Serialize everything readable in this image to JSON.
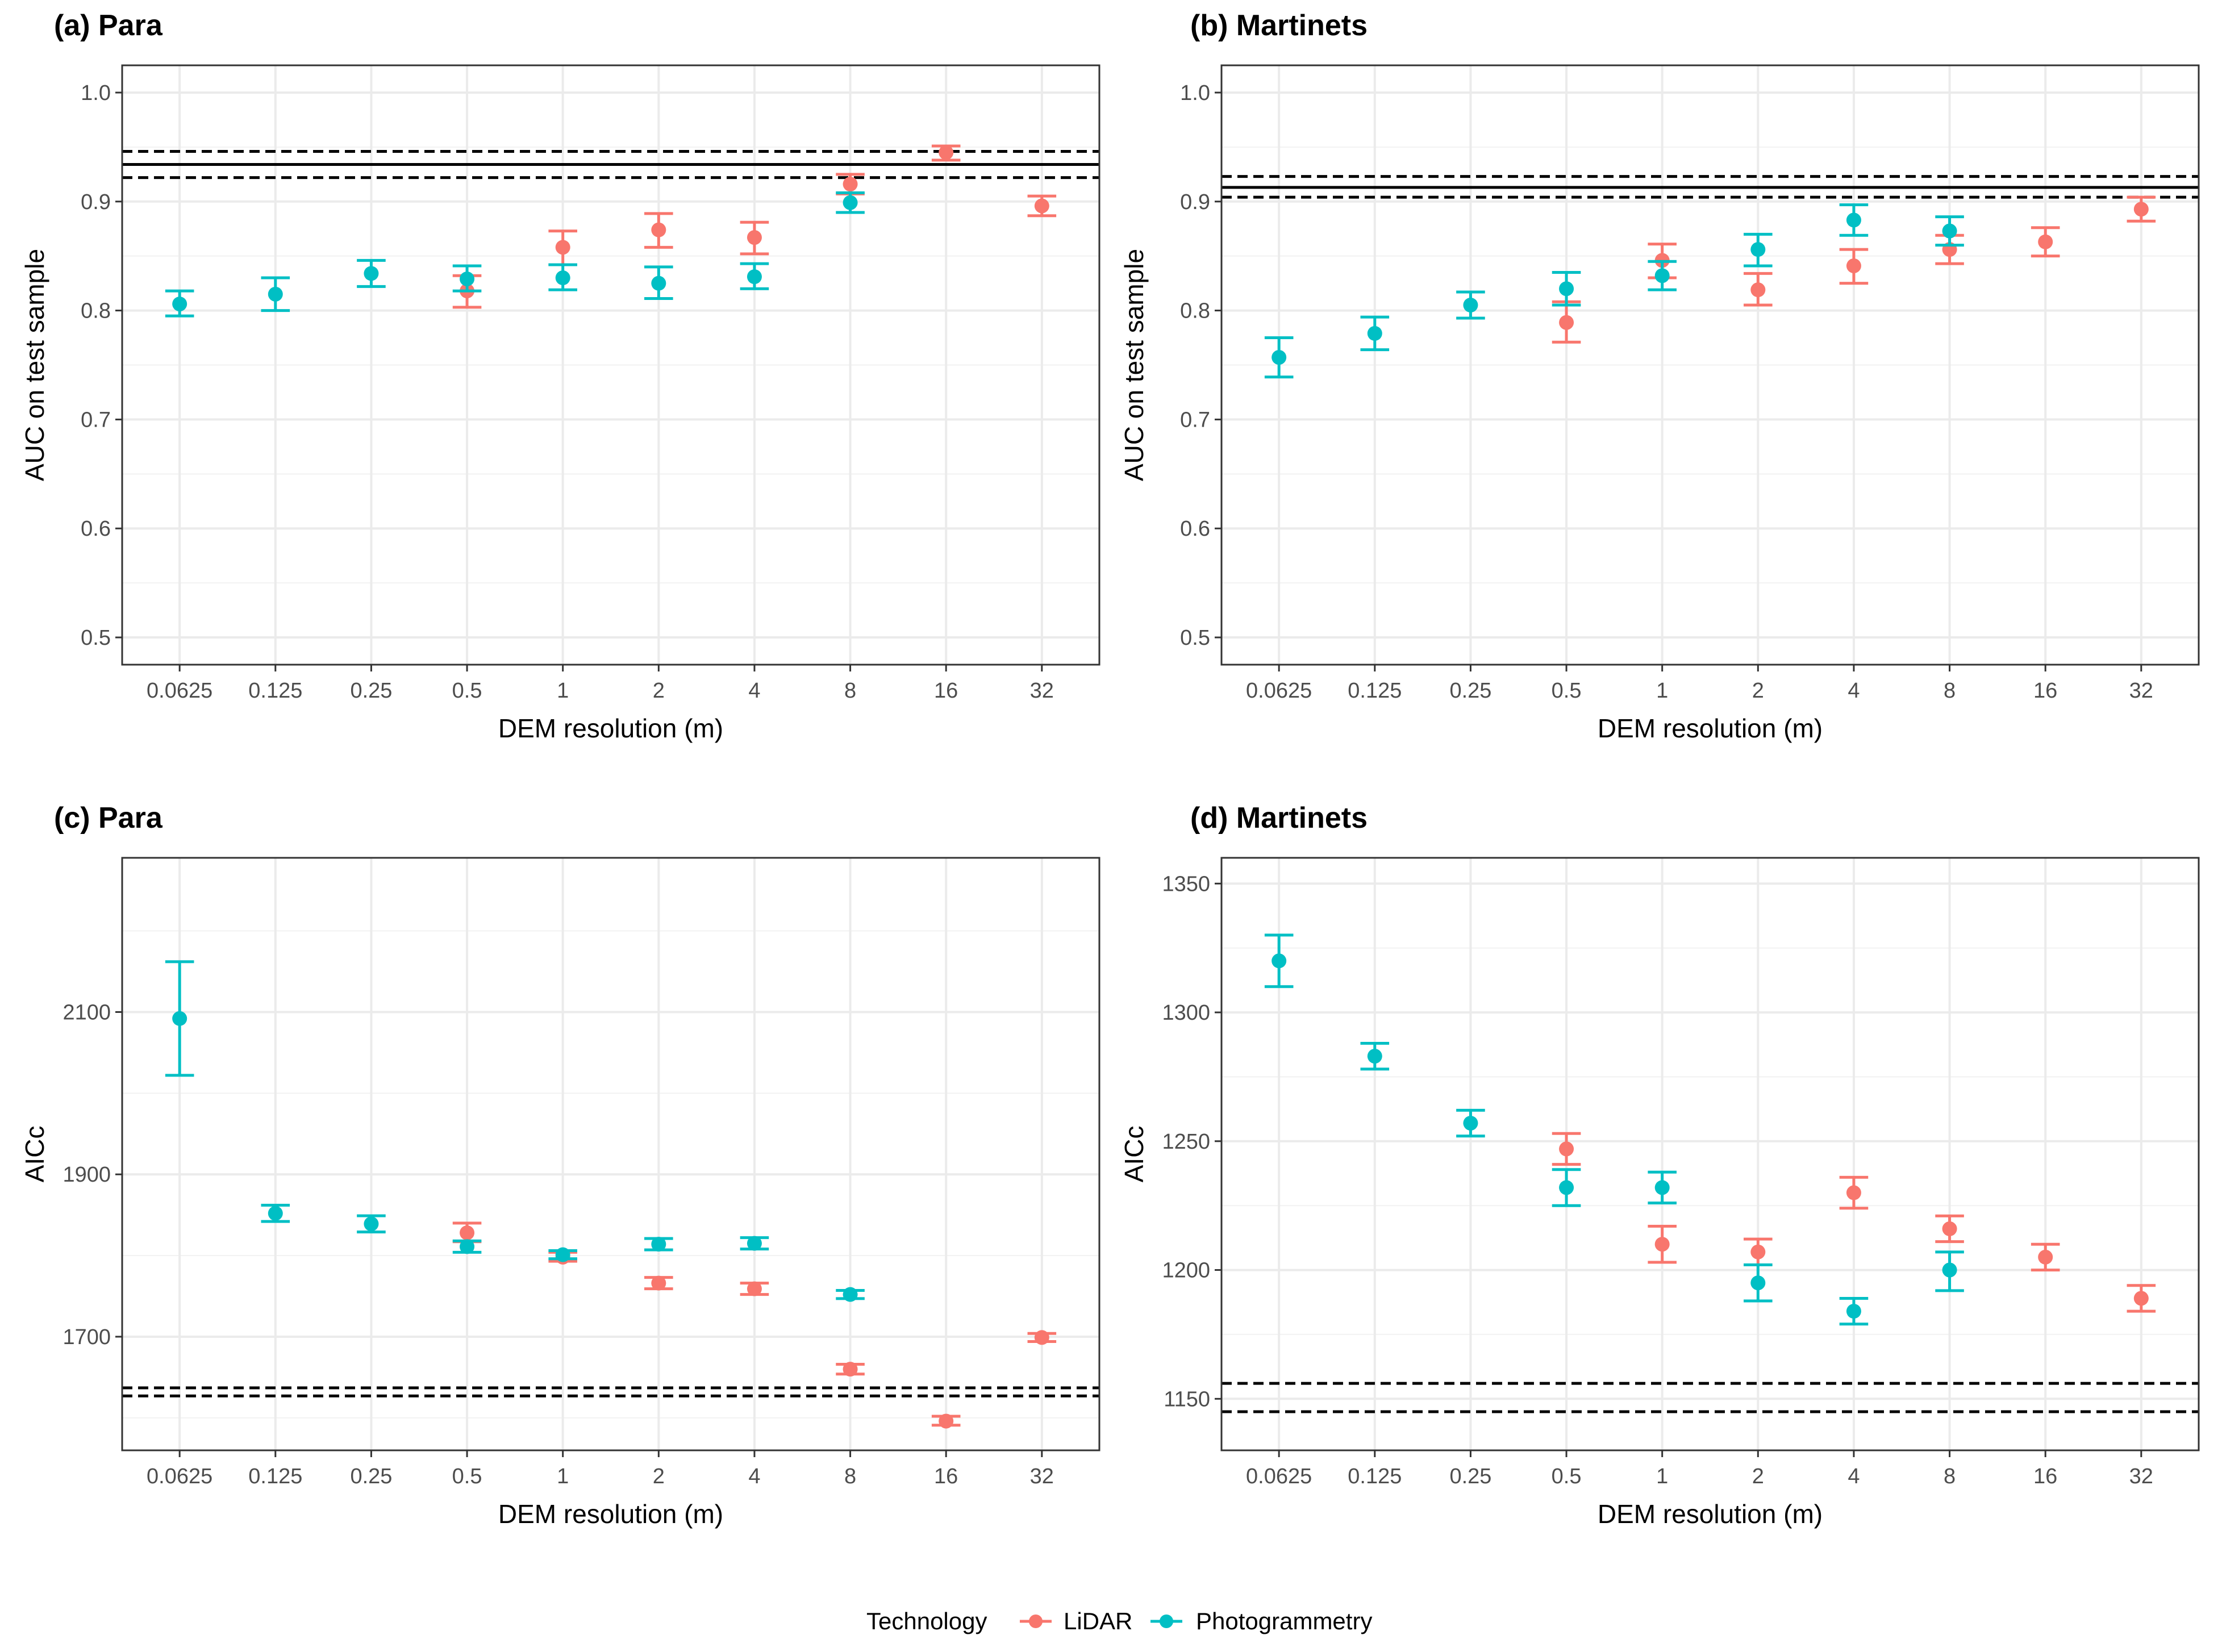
{
  "figure": {
    "legend": {
      "title": "Technology",
      "items": [
        {
          "label": "LiDAR",
          "color": "#F8766D"
        },
        {
          "label": "Photogrammetry",
          "color": "#00BFC4"
        }
      ]
    }
  },
  "chart_data": [
    {
      "id": "a",
      "type": "scatter",
      "title": "(a) Para",
      "xlabel": "DEM resolution (m)",
      "ylabel": "AUC on test sample",
      "categories": [
        "0.0625",
        "0.125",
        "0.25",
        "0.5",
        "1",
        "2",
        "4",
        "8",
        "16",
        "32"
      ],
      "ylim": [
        0.475,
        1.025
      ],
      "yticks": [
        0.5,
        0.6,
        0.7,
        0.8,
        0.9,
        1.0
      ],
      "ytick_labels": [
        "0.5",
        "0.6",
        "0.7",
        "0.8",
        "0.9",
        "1.0"
      ],
      "hlines": [
        {
          "y": 0.934,
          "style": "solid"
        },
        {
          "y": 0.946,
          "style": "dashed"
        },
        {
          "y": 0.922,
          "style": "dashed"
        }
      ],
      "series": [
        {
          "name": "LiDAR",
          "color": "#F8766D",
          "points": [
            {
              "x": "0.5",
              "y": 0.818,
              "lo": 0.803,
              "hi": 0.832
            },
            {
              "x": "1",
              "y": 0.858,
              "lo": 0.842,
              "hi": 0.873
            },
            {
              "x": "2",
              "y": 0.874,
              "lo": 0.858,
              "hi": 0.889
            },
            {
              "x": "4",
              "y": 0.867,
              "lo": 0.852,
              "hi": 0.881
            },
            {
              "x": "8",
              "y": 0.916,
              "lo": 0.907,
              "hi": 0.925
            },
            {
              "x": "16",
              "y": 0.945,
              "lo": 0.938,
              "hi": 0.951
            },
            {
              "x": "32",
              "y": 0.896,
              "lo": 0.887,
              "hi": 0.905
            }
          ]
        },
        {
          "name": "Photogrammetry",
          "color": "#00BFC4",
          "points": [
            {
              "x": "0.0625",
              "y": 0.806,
              "lo": 0.795,
              "hi": 0.818
            },
            {
              "x": "0.125",
              "y": 0.815,
              "lo": 0.8,
              "hi": 0.83
            },
            {
              "x": "0.25",
              "y": 0.834,
              "lo": 0.822,
              "hi": 0.846
            },
            {
              "x": "0.5",
              "y": 0.829,
              "lo": 0.818,
              "hi": 0.841
            },
            {
              "x": "1",
              "y": 0.83,
              "lo": 0.819,
              "hi": 0.842
            },
            {
              "x": "2",
              "y": 0.825,
              "lo": 0.811,
              "hi": 0.84
            },
            {
              "x": "4",
              "y": 0.831,
              "lo": 0.82,
              "hi": 0.843
            },
            {
              "x": "8",
              "y": 0.899,
              "lo": 0.89,
              "hi": 0.908
            }
          ]
        }
      ]
    },
    {
      "id": "b",
      "type": "scatter",
      "title": "(b) Martinets",
      "xlabel": "DEM resolution (m)",
      "ylabel": "AUC on test sample",
      "categories": [
        "0.0625",
        "0.125",
        "0.25",
        "0.5",
        "1",
        "2",
        "4",
        "8",
        "16",
        "32"
      ],
      "ylim": [
        0.475,
        1.025
      ],
      "yticks": [
        0.5,
        0.6,
        0.7,
        0.8,
        0.9,
        1.0
      ],
      "ytick_labels": [
        "0.5",
        "0.6",
        "0.7",
        "0.8",
        "0.9",
        "1.0"
      ],
      "hlines": [
        {
          "y": 0.913,
          "style": "solid"
        },
        {
          "y": 0.923,
          "style": "dashed"
        },
        {
          "y": 0.904,
          "style": "dashed"
        }
      ],
      "series": [
        {
          "name": "LiDAR",
          "color": "#F8766D",
          "points": [
            {
              "x": "0.5",
              "y": 0.789,
              "lo": 0.771,
              "hi": 0.808
            },
            {
              "x": "1",
              "y": 0.846,
              "lo": 0.83,
              "hi": 0.861
            },
            {
              "x": "2",
              "y": 0.819,
              "lo": 0.805,
              "hi": 0.834
            },
            {
              "x": "4",
              "y": 0.841,
              "lo": 0.825,
              "hi": 0.856
            },
            {
              "x": "8",
              "y": 0.856,
              "lo": 0.843,
              "hi": 0.869
            },
            {
              "x": "16",
              "y": 0.863,
              "lo": 0.85,
              "hi": 0.876
            },
            {
              "x": "32",
              "y": 0.893,
              "lo": 0.882,
              "hi": 0.904
            }
          ]
        },
        {
          "name": "Photogrammetry",
          "color": "#00BFC4",
          "points": [
            {
              "x": "0.0625",
              "y": 0.757,
              "lo": 0.739,
              "hi": 0.775
            },
            {
              "x": "0.125",
              "y": 0.779,
              "lo": 0.764,
              "hi": 0.794
            },
            {
              "x": "0.25",
              "y": 0.805,
              "lo": 0.793,
              "hi": 0.817
            },
            {
              "x": "0.5",
              "y": 0.82,
              "lo": 0.805,
              "hi": 0.835
            },
            {
              "x": "1",
              "y": 0.832,
              "lo": 0.819,
              "hi": 0.845
            },
            {
              "x": "2",
              "y": 0.856,
              "lo": 0.841,
              "hi": 0.87
            },
            {
              "x": "4",
              "y": 0.883,
              "lo": 0.869,
              "hi": 0.897
            },
            {
              "x": "8",
              "y": 0.873,
              "lo": 0.86,
              "hi": 0.886
            }
          ]
        }
      ]
    },
    {
      "id": "c",
      "type": "scatter",
      "title": "(c) Para",
      "xlabel": "DEM resolution (m)",
      "ylabel": "AICc",
      "categories": [
        "0.0625",
        "0.125",
        "0.25",
        "0.5",
        "1",
        "2",
        "4",
        "8",
        "16",
        "32"
      ],
      "ylim": [
        1560,
        2290
      ],
      "yticks": [
        1700,
        1900,
        2100
      ],
      "ytick_labels": [
        "1700",
        "1900",
        "2100"
      ],
      "hlines": [
        {
          "y": 1637,
          "style": "dashed"
        },
        {
          "y": 1627,
          "style": "dashed"
        }
      ],
      "series": [
        {
          "name": "LiDAR",
          "color": "#F8766D",
          "points": [
            {
              "x": "0.5",
              "y": 1828,
              "lo": 1817,
              "hi": 1840
            },
            {
              "x": "1",
              "y": 1798,
              "lo": 1793,
              "hi": 1804
            },
            {
              "x": "2",
              "y": 1766,
              "lo": 1759,
              "hi": 1773
            },
            {
              "x": "4",
              "y": 1759,
              "lo": 1752,
              "hi": 1766
            },
            {
              "x": "8",
              "y": 1660,
              "lo": 1654,
              "hi": 1666
            },
            {
              "x": "16",
              "y": 1596,
              "lo": 1591,
              "hi": 1602
            },
            {
              "x": "32",
              "y": 1699,
              "lo": 1694,
              "hi": 1704
            }
          ]
        },
        {
          "name": "Photogrammetry",
          "color": "#00BFC4",
          "points": [
            {
              "x": "0.0625",
              "y": 2092,
              "lo": 2022,
              "hi": 2162
            },
            {
              "x": "0.125",
              "y": 1852,
              "lo": 1842,
              "hi": 1862
            },
            {
              "x": "0.25",
              "y": 1839,
              "lo": 1829,
              "hi": 1849
            },
            {
              "x": "0.5",
              "y": 1811,
              "lo": 1804,
              "hi": 1818
            },
            {
              "x": "1",
              "y": 1801,
              "lo": 1796,
              "hi": 1806
            },
            {
              "x": "2",
              "y": 1814,
              "lo": 1807,
              "hi": 1821
            },
            {
              "x": "4",
              "y": 1815,
              "lo": 1808,
              "hi": 1822
            },
            {
              "x": "8",
              "y": 1752,
              "lo": 1747,
              "hi": 1757
            }
          ]
        }
      ]
    },
    {
      "id": "d",
      "type": "scatter",
      "title": "(d) Martinets",
      "xlabel": "DEM resolution (m)",
      "ylabel": "AICc",
      "categories": [
        "0.0625",
        "0.125",
        "0.25",
        "0.5",
        "1",
        "2",
        "4",
        "8",
        "16",
        "32"
      ],
      "ylim": [
        1130,
        1360
      ],
      "yticks": [
        1150,
        1200,
        1250,
        1300,
        1350
      ],
      "ytick_labels": [
        "1150",
        "1200",
        "1250",
        "1300",
        "1350"
      ],
      "hlines": [
        {
          "y": 1156,
          "style": "dashed"
        },
        {
          "y": 1145,
          "style": "dashed"
        }
      ],
      "series": [
        {
          "name": "LiDAR",
          "color": "#F8766D",
          "points": [
            {
              "x": "0.5",
              "y": 1247,
              "lo": 1241,
              "hi": 1253
            },
            {
              "x": "1",
              "y": 1210,
              "lo": 1203,
              "hi": 1217
            },
            {
              "x": "2",
              "y": 1207,
              "lo": 1202,
              "hi": 1212
            },
            {
              "x": "4",
              "y": 1230,
              "lo": 1224,
              "hi": 1236
            },
            {
              "x": "8",
              "y": 1216,
              "lo": 1211,
              "hi": 1221
            },
            {
              "x": "16",
              "y": 1205,
              "lo": 1200,
              "hi": 1210
            },
            {
              "x": "32",
              "y": 1189,
              "lo": 1184,
              "hi": 1194
            }
          ]
        },
        {
          "name": "Photogrammetry",
          "color": "#00BFC4",
          "points": [
            {
              "x": "0.0625",
              "y": 1320,
              "lo": 1310,
              "hi": 1330
            },
            {
              "x": "0.125",
              "y": 1283,
              "lo": 1278,
              "hi": 1288
            },
            {
              "x": "0.25",
              "y": 1257,
              "lo": 1252,
              "hi": 1262
            },
            {
              "x": "0.5",
              "y": 1232,
              "lo": 1225,
              "hi": 1239
            },
            {
              "x": "1",
              "y": 1232,
              "lo": 1226,
              "hi": 1238
            },
            {
              "x": "2",
              "y": 1195,
              "lo": 1188,
              "hi": 1202
            },
            {
              "x": "4",
              "y": 1184,
              "lo": 1179,
              "hi": 1189
            },
            {
              "x": "8",
              "y": 1200,
              "lo": 1192,
              "hi": 1207
            }
          ]
        }
      ]
    }
  ]
}
